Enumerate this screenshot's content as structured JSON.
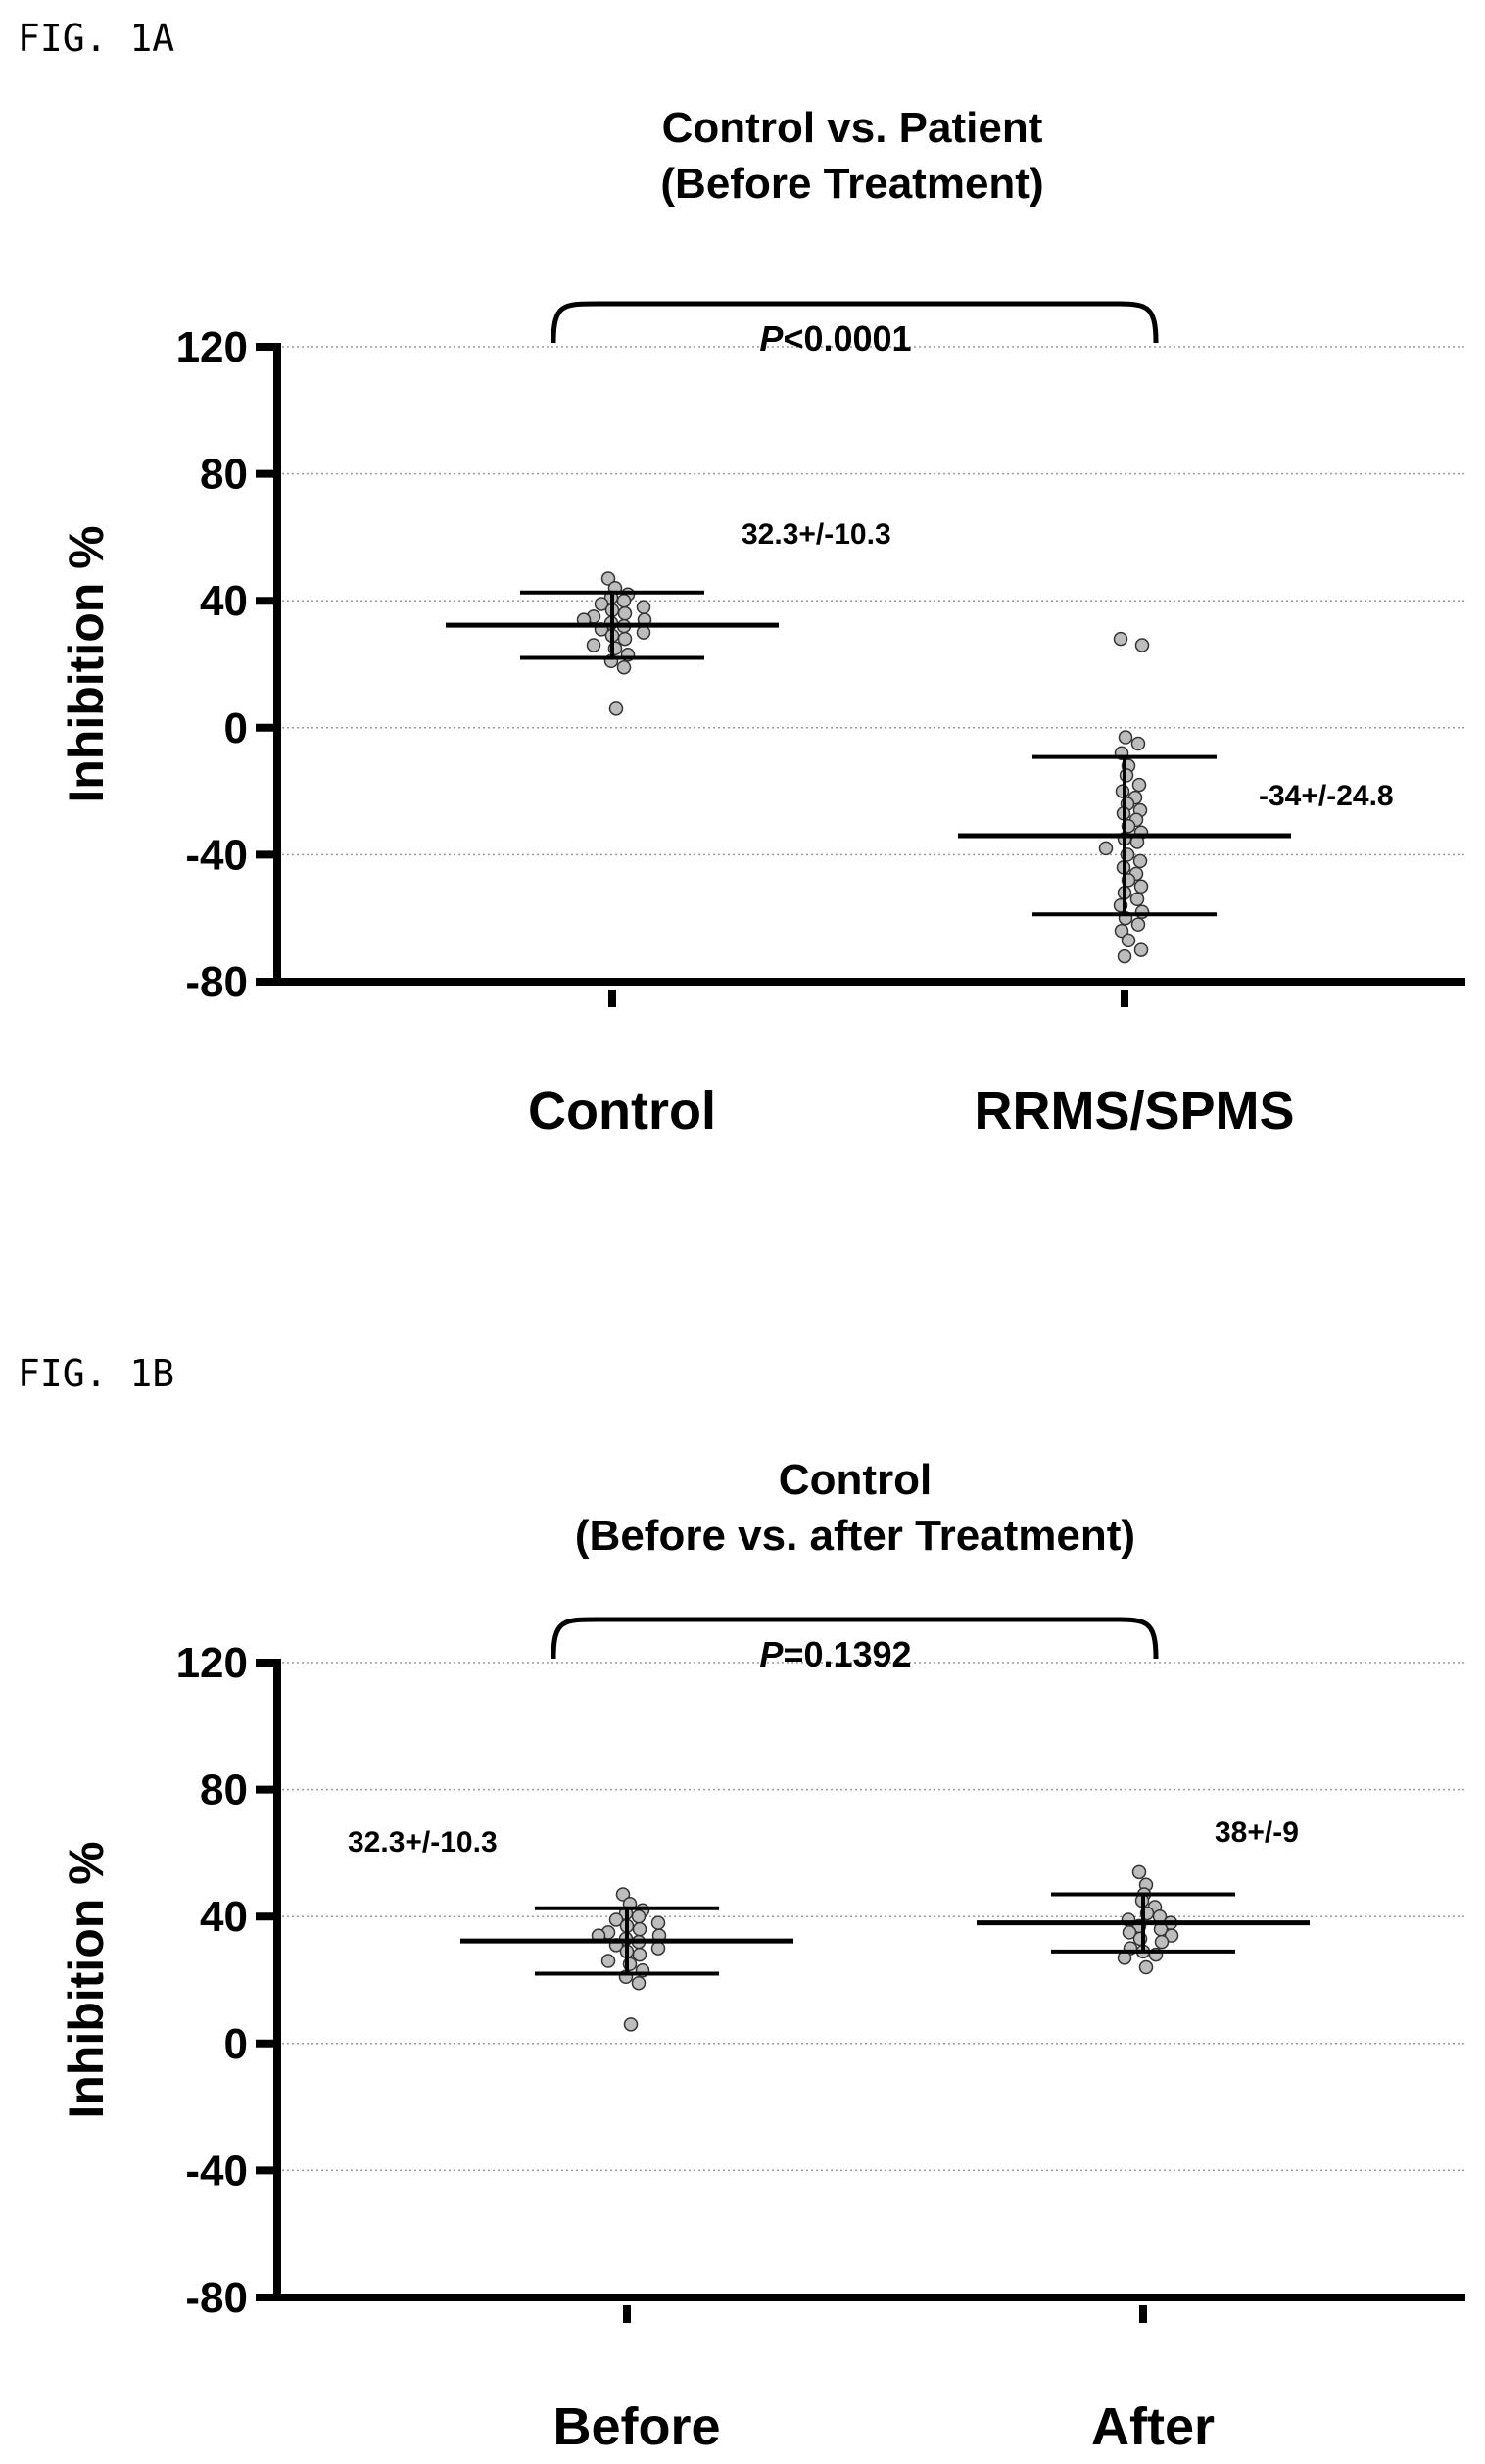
{
  "chart_data": [
    {
      "type": "scatter",
      "fig_label": "FIG. 1A",
      "title": [
        "Control vs. Patient",
        "(Before Treatment)"
      ],
      "ylabel": "Inhibition %",
      "ylim": [
        -80,
        120
      ],
      "yticks": [
        120,
        80,
        40,
        0,
        -40,
        -80
      ],
      "yticks_labels": [
        "120",
        "80",
        "40",
        "0",
        "-40",
        "-80"
      ],
      "grid": true,
      "categories": [
        "Control",
        "RRMS/SPMS"
      ],
      "significance": {
        "prefix": "P",
        "text": "<0.0001"
      },
      "groups": [
        {
          "category": "Control",
          "mean": 32.3,
          "sd": 10.3,
          "annotation": "32.3+/-10.3",
          "points": [
            47,
            44,
            42,
            41,
            40,
            39,
            38,
            37,
            36,
            35,
            34,
            34,
            33,
            32,
            31,
            30,
            29,
            28,
            26,
            25,
            23,
            21,
            19,
            6
          ]
        },
        {
          "category": "RRMS/SPMS",
          "mean": -34,
          "sd": 24.8,
          "annotation": "-34+/-24.8",
          "points": [
            28,
            26,
            -3,
            -5,
            -8,
            -12,
            -15,
            -18,
            -20,
            -22,
            -24,
            -26,
            -27,
            -29,
            -31,
            -33,
            -35,
            -36,
            -38,
            -40,
            -42,
            -44,
            -46,
            -48,
            -50,
            -52,
            -54,
            -56,
            -58,
            -60,
            -62,
            -64,
            -67,
            -70,
            -72
          ]
        }
      ]
    },
    {
      "type": "scatter",
      "fig_label": "FIG. 1B",
      "title": [
        "Control",
        "(Before vs. after Treatment)"
      ],
      "ylabel": "Inhibition %",
      "ylim": [
        -80,
        120
      ],
      "yticks": [
        120,
        80,
        40,
        0,
        -40,
        -80
      ],
      "yticks_labels": [
        "120",
        "80",
        "40",
        "0",
        "-40",
        "-80"
      ],
      "grid": true,
      "categories": [
        "Before",
        "After"
      ],
      "significance": {
        "prefix": "P",
        "text": "=0.1392"
      },
      "groups": [
        {
          "category": "Before",
          "mean": 32.3,
          "sd": 10.3,
          "annotation": "32.3+/-10.3",
          "points": [
            47,
            44,
            42,
            41,
            40,
            39,
            38,
            37,
            36,
            35,
            34,
            34,
            33,
            32,
            31,
            30,
            29,
            28,
            26,
            25,
            23,
            21,
            19,
            6
          ]
        },
        {
          "category": "After",
          "mean": 38,
          "sd": 9,
          "annotation": "38+/-9",
          "points": [
            54,
            50,
            47,
            45,
            43,
            41,
            40,
            39,
            38,
            37,
            36,
            35,
            34,
            33,
            32,
            30,
            29,
            28,
            27,
            24
          ]
        }
      ]
    }
  ]
}
